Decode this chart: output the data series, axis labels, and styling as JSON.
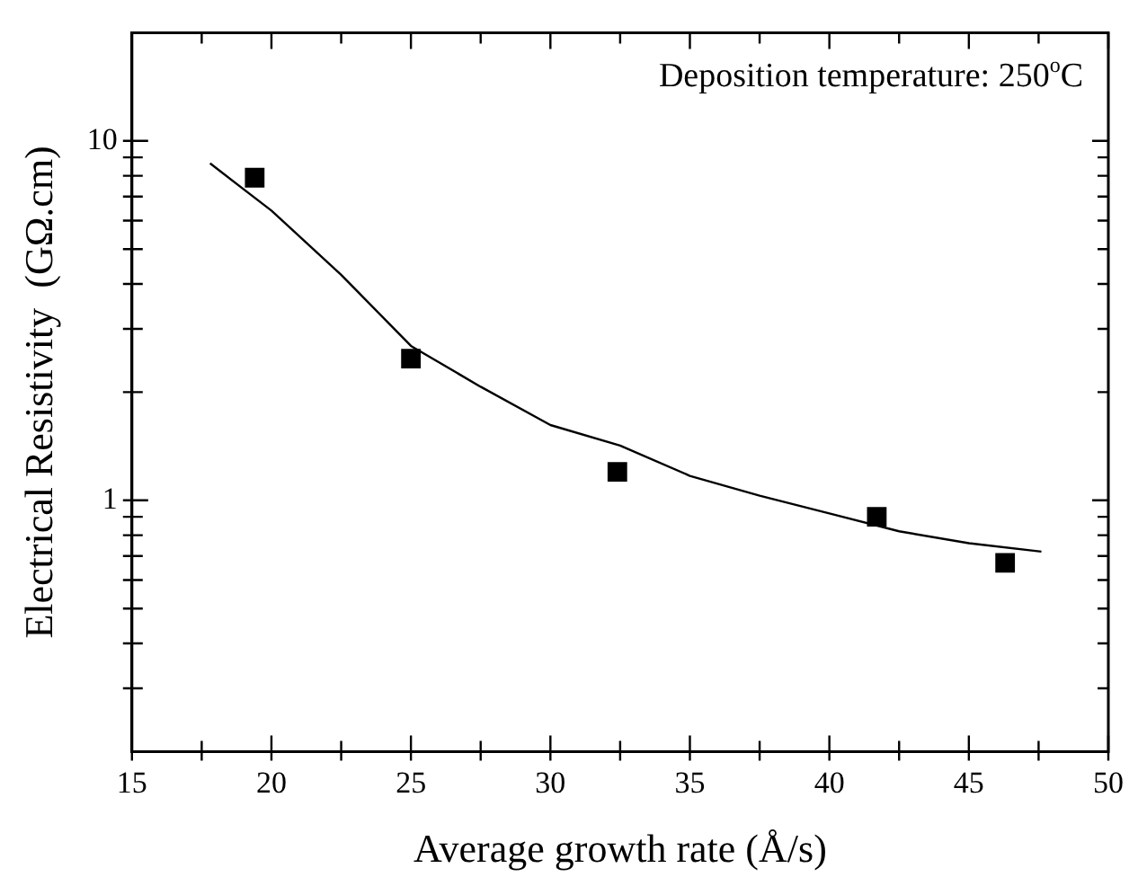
{
  "chart_data": {
    "type": "scatter",
    "xlabel": "Average growth rate (Å/s)",
    "ylabel": "Electrical Resistivity  (GΩ.cm)",
    "log": "y",
    "grid": false,
    "legend": false,
    "xlim": [
      15,
      50
    ],
    "xticks": [
      15,
      {
        "value": 17.5,
        "label": null
      },
      20,
      {
        "value": 22.5,
        "label": null
      },
      25,
      {
        "value": 27.5,
        "label": null
      },
      30,
      {
        "value": 32.5,
        "label": null
      },
      35,
      {
        "value": 37.5,
        "label": null
      },
      40,
      {
        "value": 42.5,
        "label": null
      },
      45,
      {
        "value": 47.5,
        "label": null
      },
      50
    ],
    "ylim": [
      0.2,
      20
    ],
    "yticks": [
      {
        "value": 0.3,
        "label": null
      },
      {
        "value": 0.4,
        "label": null
      },
      {
        "value": 0.5,
        "label": null
      },
      {
        "value": 0.6,
        "label": null
      },
      {
        "value": 0.7,
        "label": null
      },
      {
        "value": 0.8,
        "label": null
      },
      {
        "value": 0.9,
        "label": null
      },
      1,
      {
        "value": 2,
        "label": null
      },
      {
        "value": 3,
        "label": null
      },
      {
        "value": 4,
        "label": null
      },
      {
        "value": 5,
        "label": null
      },
      {
        "value": 6,
        "label": null
      },
      {
        "value": 7,
        "label": null
      },
      {
        "value": 8,
        "label": null
      },
      {
        "value": 9,
        "label": null
      },
      10
    ],
    "annotations": [
      "Deposition temperature: 250$^{o}$C"
    ],
    "series": [
      {
        "type": "scatter",
        "marker": "square",
        "color": "#000000",
        "x": [
          19.4,
          25.0,
          32.4,
          41.7,
          46.3
        ],
        "values": [
          7.9,
          2.48,
          1.2,
          0.9,
          0.67
        ]
      },
      {
        "type": "line",
        "marker": "none",
        "line_style": "solid",
        "color": "#000000",
        "x": [
          17.8,
          20,
          22.5,
          25,
          27.5,
          30,
          32.5,
          35,
          37.5,
          40,
          42.5,
          45,
          47.6
        ],
        "values": [
          8.66,
          6.4,
          4.24,
          2.69,
          2.07,
          1.62,
          1.42,
          1.17,
          1.03,
          0.92,
          0.82,
          0.76,
          0.72
        ]
      }
    ]
  }
}
